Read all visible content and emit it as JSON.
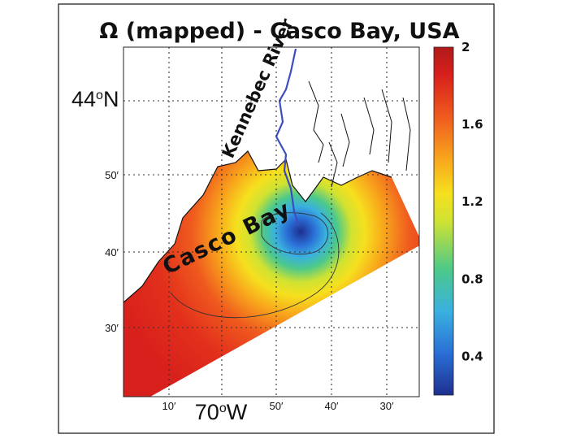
{
  "title": "Ω (mapped) - Casco Bay, USA",
  "map": {
    "lat_labels": [
      "44° N",
      "50′",
      "40′",
      "30′"
    ],
    "lon_labels": [
      "10′",
      "70° W",
      "50′",
      "40′",
      "30′"
    ],
    "lat_main": "44",
    "lat_main_unit": "o",
    "lat_main_hemi": "N",
    "lon_main": "70",
    "lon_main_unit": "o",
    "lon_main_hemi": "W",
    "place_labels": {
      "bay": "Casco Bay",
      "river": "Kennebec River"
    }
  },
  "colorbar": {
    "min": 0.2,
    "max": 2.0,
    "ticks": [
      "2",
      "1.6",
      "1.2",
      "0.8",
      "0.4"
    ],
    "colors": [
      "#1e2f8f",
      "#2a6fd6",
      "#3ab0e0",
      "#4cc98a",
      "#cfe232",
      "#f6e01e",
      "#f8a51c",
      "#ef5a1e",
      "#d8201c",
      "#b01a1a"
    ]
  }
}
